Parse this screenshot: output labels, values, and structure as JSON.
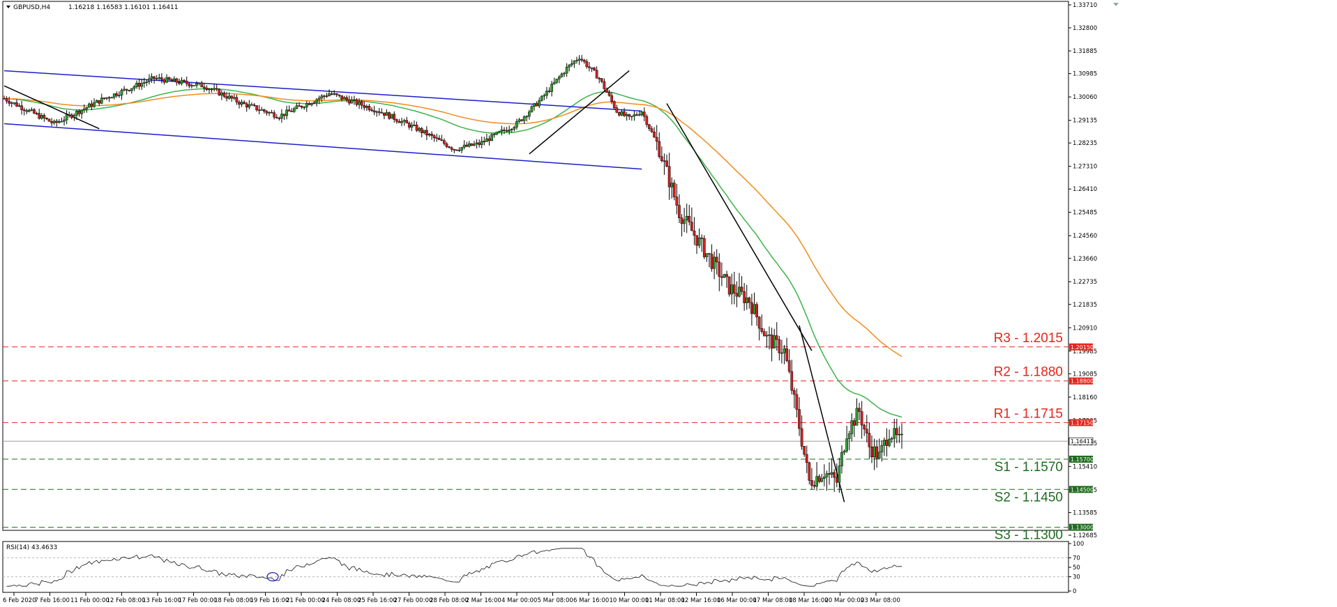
{
  "header": {
    "symbol": "GBPUSD,H4",
    "ohlc": "1.16218 1.16583 1.16101 1.16411"
  },
  "rsi": {
    "title": "RSI(14) 43.4633",
    "ticks": [
      "100",
      "70",
      "50",
      "30",
      "0"
    ]
  },
  "colors": {
    "bull": "#2e9e2e",
    "bear": "#d42020",
    "channel": "#1c1ccc",
    "ma_fast": "#3cb34a",
    "ma_slow": "#f28b1c",
    "resistance": "#e8231c",
    "support": "#1e6b1e"
  },
  "chart_data": {
    "type": "candlestick",
    "ylim": [
      1.12685,
      1.3371
    ],
    "price_ticks": [
      "1.33710",
      "1.32800",
      "1.31885",
      "1.30985",
      "1.30060",
      "1.29135",
      "1.28235",
      "1.27310",
      "1.26410",
      "1.25485",
      "1.24560",
      "1.23660",
      "1.22735",
      "1.21835",
      "1.20910",
      "1.19985",
      "1.19085",
      "1.18160",
      "1.17235",
      "1.16335",
      "1.15410",
      "1.14485",
      "1.13585",
      "1.12685"
    ],
    "time_labels": [
      "6 Feb 2020",
      "7 Feb 16:00",
      "11 Feb 00:00",
      "12 Feb 08:00",
      "13 Feb 16:00",
      "17 Feb 00:00",
      "18 Feb 08:00",
      "19 Feb 16:00",
      "21 Feb 00:00",
      "24 Feb 08:00",
      "25 Feb 16:00",
      "27 Feb 00:00",
      "28 Feb 08:00",
      "2 Mar 16:00",
      "4 Mar 00:00",
      "5 Mar 08:00",
      "6 Mar 16:00",
      "10 Mar 00:00",
      "11 Mar 08:00",
      "12 Mar 16:00",
      "16 Mar 00:00",
      "17 Mar 08:00",
      "18 Mar 16:00",
      "20 Mar 00:00",
      "23 Mar 08:00"
    ],
    "levels": [
      {
        "name": "R3",
        "label": "R3 - 1.2015",
        "tag": "1.20150",
        "value": 1.2015,
        "kind": "resistance"
      },
      {
        "name": "R2",
        "label": "R2 - 1.1880",
        "tag": "1.18800",
        "value": 1.188,
        "kind": "resistance"
      },
      {
        "name": "R1",
        "label": "R1 - 1.1715",
        "tag": "1.17150",
        "value": 1.1715,
        "kind": "resistance"
      },
      {
        "name": "S1",
        "label": "S1 - 1.1570",
        "tag": "1.15700",
        "value": 1.157,
        "kind": "support"
      },
      {
        "name": "S2",
        "label": "S2 - 1.1450",
        "tag": "1.14500",
        "value": 1.145,
        "kind": "support"
      },
      {
        "name": "S3",
        "label": "S3 - 1.1300",
        "tag": "1.13000",
        "value": 1.13,
        "kind": "support"
      }
    ],
    "current_price": {
      "tag": "1.16411",
      "value": 1.16411
    }
  }
}
